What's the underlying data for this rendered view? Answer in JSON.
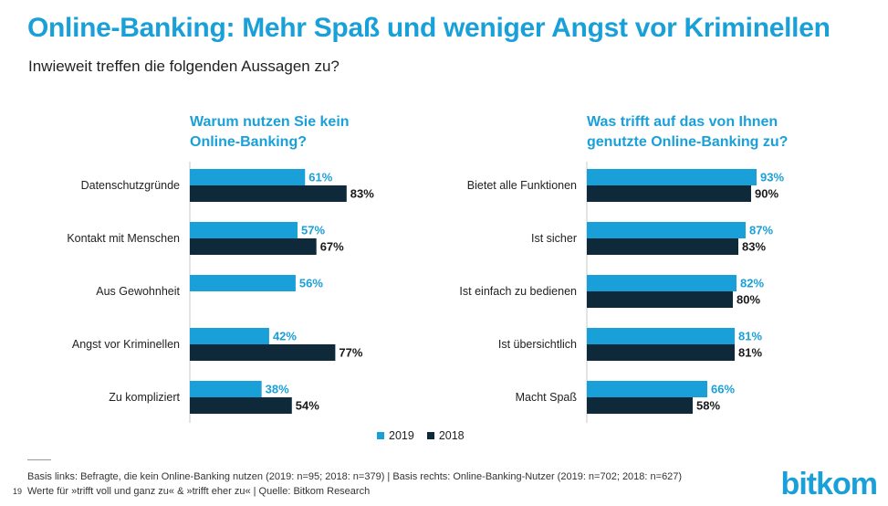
{
  "title": "Online-Banking: Mehr Spaß und weniger Angst vor Kriminellen",
  "subtitle": "Inwieweit treffen die folgenden Aussagen zu?",
  "colors": {
    "accent": "#1aa0d8",
    "series_2019": "#1aa0d8",
    "series_2018": "#0e2a3a"
  },
  "legend": {
    "s2019": "2019",
    "s2018": "2018"
  },
  "footnote": {
    "basis": "Basis links: Befragte, die kein Online-Banking nutzen (2019: n=95; 2018: n=379) | Basis rechts: Online-Banking-Nutzer (2019: n=702; 2018: n=627)",
    "values": "Werte für »trifft voll und ganz zu« & »trifft eher zu« | Quelle: Bitkom Research",
    "page": "19"
  },
  "logo": "bitkom",
  "chart_data": [
    {
      "type": "bar",
      "orientation": "horizontal",
      "title": "Warum nutzen Sie kein Online-Banking?",
      "title_lines": [
        "Warum nutzen Sie kein",
        "Online-Banking?"
      ],
      "categories": [
        "Datenschutzgründe",
        "Kontakt mit Menschen",
        "Aus Gewohnheit",
        "Angst vor Kriminellen",
        "Zu kompliziert"
      ],
      "series": [
        {
          "name": "2019",
          "values": [
            61,
            57,
            56,
            42,
            38
          ]
        },
        {
          "name": "2018",
          "values": [
            83,
            67,
            null,
            77,
            54
          ]
        }
      ],
      "unit": "%",
      "xlim": [
        0,
        100
      ]
    },
    {
      "type": "bar",
      "orientation": "horizontal",
      "title": "Was trifft auf das von Ihnen genutzte Online-Banking zu?",
      "title_lines": [
        "Was trifft auf das von Ihnen",
        "genutzte Online-Banking zu?"
      ],
      "categories": [
        "Bietet alle Funktionen",
        "Ist sicher",
        "Ist einfach zu bedienen",
        "Ist übersichtlich",
        "Macht Spaß"
      ],
      "series": [
        {
          "name": "2019",
          "values": [
            93,
            87,
            82,
            81,
            66
          ]
        },
        {
          "name": "2018",
          "values": [
            90,
            83,
            80,
            81,
            58
          ]
        }
      ],
      "unit": "%",
      "xlim": [
        0,
        100
      ]
    }
  ]
}
